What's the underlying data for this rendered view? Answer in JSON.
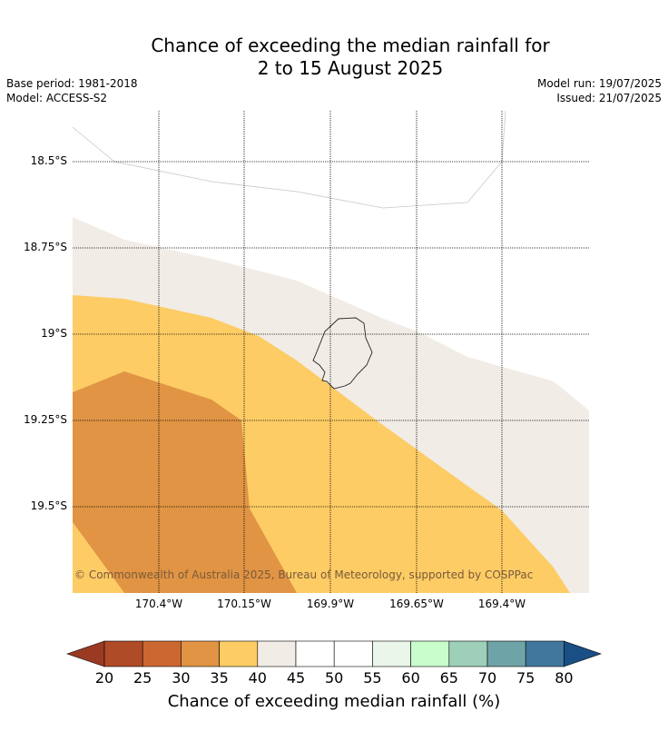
{
  "header": {
    "title_line1": "Chance of exceeding the median rainfall for",
    "title_line2": "2 to 15 August 2025",
    "base_period": "Base period: 1981-2018",
    "model": "Model: ACCESS-S2",
    "model_run": "Model run: 19/07/2025",
    "issued": "Issued: 21/07/2025"
  },
  "map": {
    "lat_labels": [
      "18.5°S",
      "18.75°S",
      "19°S",
      "19.25°S",
      "19.5°S"
    ],
    "lon_labels": [
      "170.4°W",
      "170.15°W",
      "169.9°W",
      "169.65°W",
      "169.4°W"
    ],
    "copyright": "© Commonwealth of Australia 2025, Bureau of Meteorology, supported by COSPPac",
    "band_colors": {
      "lt_35": "#e09444",
      "35_40": "#fdcc65",
      "40_45": "#f1ece6",
      "45_55": "#ffffff"
    }
  },
  "colorbar": {
    "title": "Chance of exceeding median rainfall (%)",
    "ticks": [
      "20",
      "25",
      "30",
      "35",
      "40",
      "45",
      "50",
      "55",
      "60",
      "65",
      "70",
      "75",
      "80"
    ],
    "colors": [
      "#b04b27",
      "#cc6731",
      "#e09444",
      "#fdcc65",
      "#f1ece6",
      "#ffffff",
      "#ffffff",
      "#e9f6e9",
      "#c9fdcb",
      "#9ecfb9",
      "#6ea4a7",
      "#41779c"
    ],
    "under_color": "#9b3a22",
    "over_color": "#1a4f86"
  }
}
